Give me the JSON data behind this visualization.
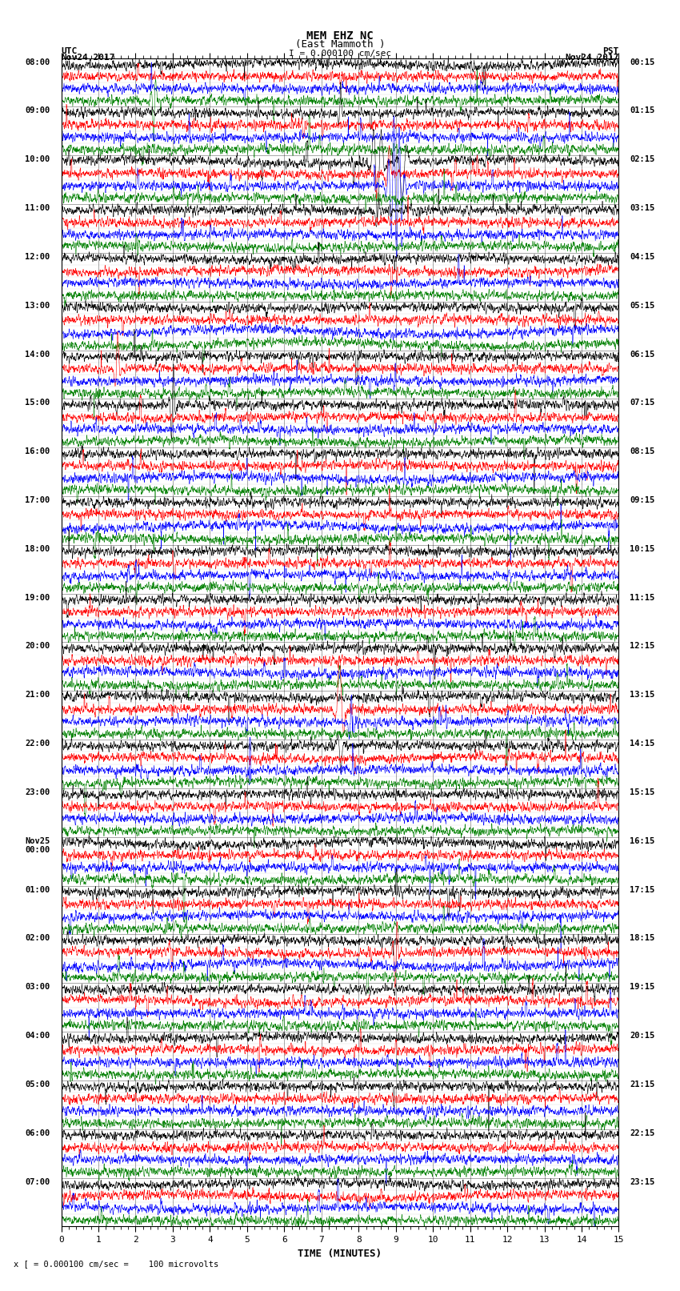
{
  "title_line1": "MEM EHZ NC",
  "title_line2": "(East Mammoth )",
  "title_line3": "I = 0.000100 cm/sec",
  "left_label_top": "UTC",
  "left_label_date": "Nov24,2017",
  "right_label_top": "PST",
  "right_label_date": "Nov24,2017",
  "xlabel": "TIME (MINUTES)",
  "footnote": "x [ = 0.000100 cm/sec =    100 microvolts",
  "utc_times": [
    "08:00",
    "09:00",
    "10:00",
    "11:00",
    "12:00",
    "13:00",
    "14:00",
    "15:00",
    "16:00",
    "17:00",
    "18:00",
    "19:00",
    "20:00",
    "21:00",
    "22:00",
    "23:00",
    "Nov25\n00:00",
    "01:00",
    "02:00",
    "03:00",
    "04:00",
    "05:00",
    "06:00",
    "07:00"
  ],
  "pst_times": [
    "00:15",
    "01:15",
    "02:15",
    "03:15",
    "04:15",
    "05:15",
    "06:15",
    "07:15",
    "08:15",
    "09:15",
    "10:15",
    "11:15",
    "12:15",
    "13:15",
    "14:15",
    "15:15",
    "16:15",
    "17:15",
    "18:15",
    "19:15",
    "20:15",
    "21:15",
    "22:15",
    "23:15"
  ],
  "n_rows": 24,
  "traces_per_row": 4,
  "colors": [
    "black",
    "red",
    "blue",
    "green"
  ],
  "bg_color": "white",
  "noise_amplitude": 0.08,
  "minutes": 15,
  "samples_per_minute": 200
}
